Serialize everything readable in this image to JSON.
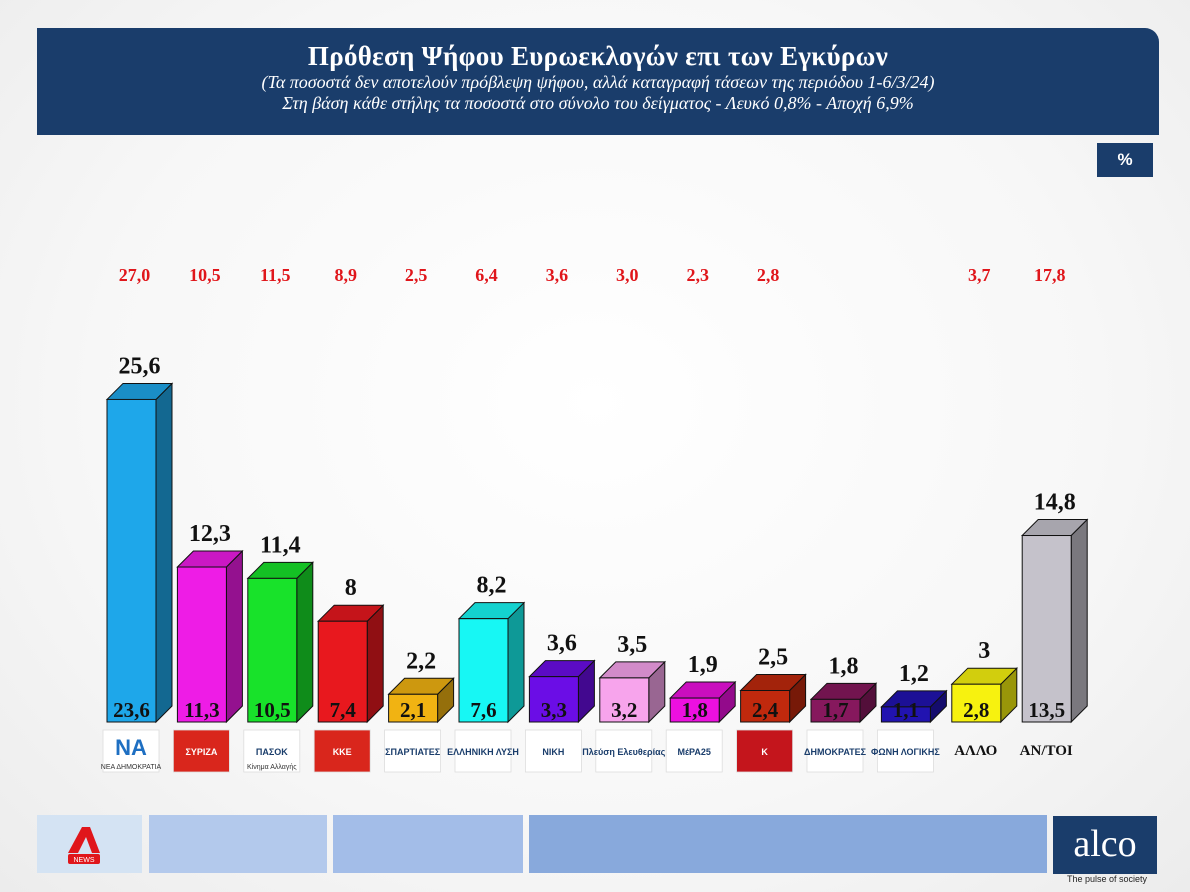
{
  "header": {
    "title": "Πρόθεση Ψήφου Ευρωεκλογών επι των Εγκύρων",
    "subtitle_1": "(Τα ποσοστά δεν αποτελούν πρόβλεψη ψήφου, αλλά καταγραφή τάσεων της περιόδου  1-6/3/24)",
    "subtitle_2": "Στη βάση κάθε στήλης τα ποσοστά στο σύνολο του δείγματος - Λευκό 0,8% - Αποχή 6,9%"
  },
  "unit_badge": "%",
  "chart_data": {
    "type": "bar",
    "categories": [
      "ΝΕΑ ΔΗΜΟΚΡΑΤΙΑ",
      "ΣΥΡΙΖΑ",
      "ΠΑΣΟΚ",
      "ΚΚΕ",
      "ΣΠΑΡΤΙΑΤΕΣ",
      "ΕΛΛΗΝΙΚΗ ΛΥΣΗ",
      "ΝΙΚΗ",
      "Πλεύση Ελευθερίας",
      "ΜέΡΑ25",
      "Κ",
      "ΔΗΜΟΚΡΑΤΕΣ",
      "ΦΩΝΗ ΛΟΓΙΚΗΣ",
      "ΑΛΛΟ",
      "ΑΝ/ΤΟΙ"
    ],
    "series": [
      {
        "values": [
          25.6,
          12.3,
          11.4,
          8,
          2.2,
          8.2,
          3.6,
          3.5,
          1.9,
          2.5,
          1.8,
          1.2,
          3,
          14.8
        ]
      },
      {
        "values": [
          23.6,
          11.3,
          10.5,
          7.4,
          2.1,
          7.6,
          3.3,
          3.2,
          1.8,
          2.4,
          1.7,
          1.1,
          2.8,
          13.5
        ]
      },
      {
        "values": [
          27.0,
          10.5,
          11.5,
          8.9,
          2.5,
          6.4,
          3.6,
          3.0,
          2.3,
          2.8,
          null,
          null,
          3.7,
          17.8
        ]
      }
    ],
    "top_labels": [
      "25,6",
      "12,3",
      "11,4",
      "8",
      "2,2",
      "8,2",
      "3,6",
      "3,5",
      "1,9",
      "2,5",
      "1,8",
      "1,2",
      "3",
      "14,8"
    ],
    "base_labels": [
      "23,6",
      "11,3",
      "10,5",
      "7,4",
      "2,1",
      "7,6",
      "3,3",
      "3,2",
      "1,8",
      "2,4",
      "1,7",
      "1,1",
      "2,8",
      "13,5"
    ],
    "red_labels": [
      "27,0",
      "10,5",
      "11,5",
      "8,9",
      "2,5",
      "6,4",
      "3,6",
      "3,0",
      "2,3",
      "2,8",
      "",
      "",
      "3,7",
      "17,8"
    ],
    "logo_texts": [
      "ΝΑ",
      "ΣΥΡΙΖΑ",
      "ΠΑΣΟΚ",
      "ΚΚΕ",
      "ΣΠΑΡΤΙΑΤΕΣ",
      "ΕΛΛΗΝΙΚΗ ΛΥΣΗ",
      "ΝΙΚΗ",
      "Πλεύση Ελευθερίας",
      "ΜέΡΑ25",
      "Κ",
      "ΔΗΜΟΚΡΑΤΕΣ",
      "ΦΩΝΗ ΛΟΓΙΚΗΣ",
      "ΑΛΛΟ",
      "ΑΝ/ΤΟΙ"
    ],
    "logo_subtexts": [
      "ΝΕΑ ΔΗΜΟΚΡΑΤΙΑ",
      "",
      "Κίνημα Αλλαγής",
      "",
      "",
      "",
      "",
      "",
      "",
      "",
      "",
      "",
      "",
      ""
    ],
    "colors": {
      "fronts": [
        "#1ea7ea",
        "#ee1ce6",
        "#18e22a",
        "#e8181e",
        "#f1b312",
        "#17f7f4",
        "#6b0de6",
        "#f7a4ec",
        "#ed10e0",
        "#c0290d",
        "#86185d",
        "#2113b0",
        "#f7f20f",
        "#c5c2cb"
      ],
      "red_label": "#e0161b",
      "brand_navy": "#1a3d6b"
    },
    "ylim": [
      0,
      27
    ]
  },
  "footer": {
    "alpha_logo_text": "NEWS",
    "alco_logo": "alco",
    "alco_tagline": "The pulse of society"
  }
}
